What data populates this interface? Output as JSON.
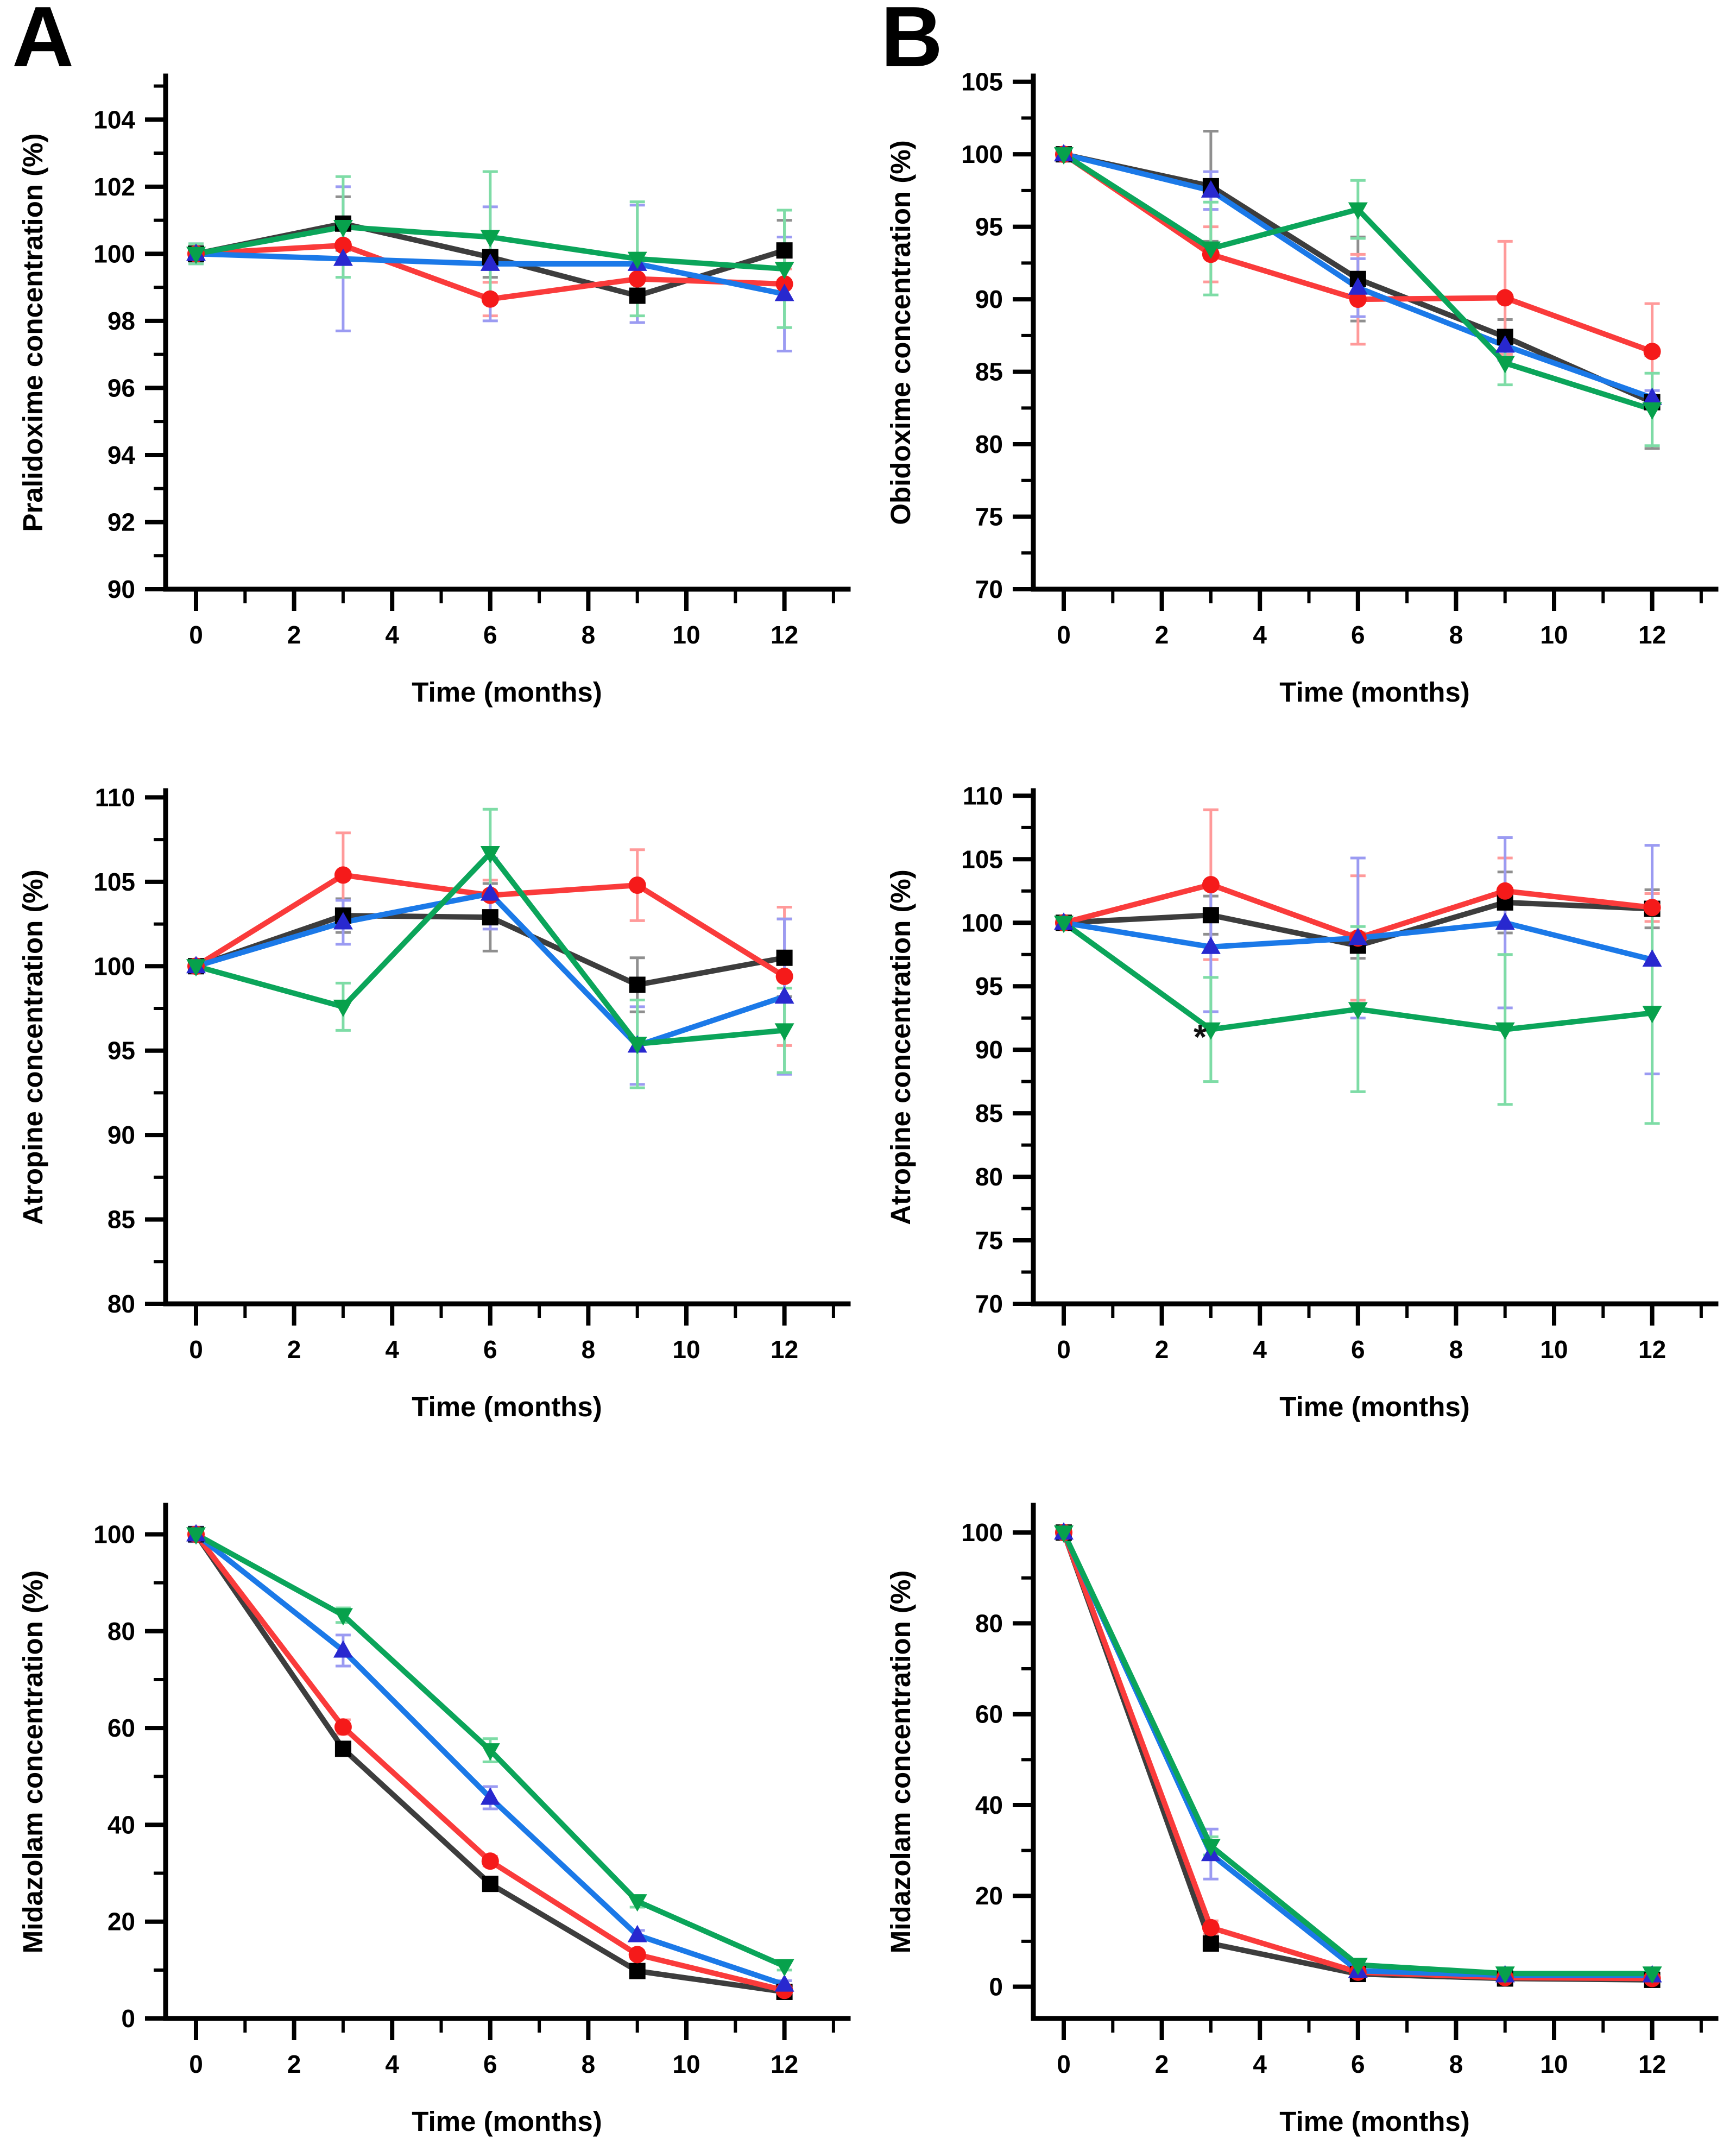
{
  "figure": {
    "panels": [
      {
        "label": "A"
      },
      {
        "label": "B"
      }
    ],
    "background_color": "#ffffff",
    "axis_color": "#000000"
  },
  "palette": {
    "black": {
      "line": "#3d3d3d",
      "marker": "#000000",
      "error": "#8f8f8f"
    },
    "red": {
      "line": "#fa3b3b",
      "marker": "#f51a1a",
      "error": "#ff9a9a"
    },
    "blue": {
      "line": "#1b79e8",
      "marker": "#2828cf",
      "error": "#9b9bf2"
    },
    "green": {
      "line": "#0ba55a",
      "marker": "#07a14c",
      "error": "#7edca6"
    }
  },
  "chart_data": [
    {
      "id": "pralidoxime-a",
      "panel": "A",
      "type": "line",
      "ylabel": "Pralidoxime concentration (%)",
      "xlabel": "Time (months)",
      "xlim": [
        -0.62,
        13.3
      ],
      "ylim": [
        90,
        105.3
      ],
      "xticks": [
        0,
        2,
        4,
        6,
        8,
        10,
        12
      ],
      "yticks": [
        90,
        92,
        94,
        96,
        98,
        100,
        102,
        104
      ],
      "x": [
        0,
        3,
        6,
        9,
        12
      ],
      "series": [
        {
          "name": "black-squares",
          "color_key": "black",
          "marker": "square",
          "values": [
            100.0,
            100.9,
            99.9,
            98.75,
            100.1
          ],
          "errors": [
            0.25,
            0.8,
            0.6,
            0.8,
            0.9
          ]
        },
        {
          "name": "red-circles",
          "color_key": "red",
          "marker": "circle",
          "values": [
            100.0,
            100.25,
            98.65,
            99.25,
            99.1
          ],
          "errors": [
            0.2,
            0.5,
            0.5,
            0.6,
            0.45
          ]
        },
        {
          "name": "blue-triangles-up",
          "color_key": "blue",
          "marker": "triangle-up",
          "values": [
            100.0,
            99.85,
            99.7,
            99.7,
            98.8
          ],
          "errors": [
            0.3,
            2.15,
            1.7,
            1.75,
            1.7
          ]
        },
        {
          "name": "green-triangles-down",
          "color_key": "green",
          "marker": "triangle-down",
          "values": [
            100.0,
            100.8,
            100.5,
            99.85,
            99.55
          ],
          "errors": [
            0.3,
            1.5,
            1.95,
            1.7,
            1.75
          ]
        }
      ],
      "annotations": []
    },
    {
      "id": "obidoxime-b",
      "panel": "B",
      "type": "line",
      "ylabel": "Obidoxime concentration (%)",
      "xlabel": "Time (months)",
      "xlim": [
        -0.62,
        13.3
      ],
      "ylim": [
        70,
        105.4
      ],
      "xticks": [
        0,
        2,
        4,
        6,
        8,
        10,
        12
      ],
      "yticks": [
        70,
        75,
        80,
        85,
        90,
        95,
        100,
        105
      ],
      "x": [
        0,
        3,
        6,
        9,
        12
      ],
      "series": [
        {
          "name": "black-squares",
          "color_key": "black",
          "marker": "square",
          "values": [
            100,
            97.8,
            91.4,
            87.4,
            82.9
          ],
          "errors": [
            0.3,
            3.8,
            2.9,
            1.2,
            3.2
          ]
        },
        {
          "name": "red-circles",
          "color_key": "red",
          "marker": "circle",
          "values": [
            100,
            93.1,
            90.0,
            90.1,
            86.4
          ],
          "errors": [
            0.3,
            1.9,
            3.1,
            3.9,
            3.3
          ]
        },
        {
          "name": "blue-triangles-up",
          "color_key": "blue",
          "marker": "triangle-up",
          "values": [
            100,
            97.5,
            90.8,
            86.8,
            83.2
          ],
          "errors": [
            0.3,
            1.3,
            2.0,
            1.0,
            0.5
          ]
        },
        {
          "name": "green-triangles-down",
          "color_key": "green",
          "marker": "triangle-down",
          "values": [
            100,
            93.5,
            96.2,
            85.6,
            82.4
          ],
          "errors": [
            0.3,
            3.2,
            2.0,
            1.5,
            2.5
          ]
        }
      ],
      "annotations": []
    },
    {
      "id": "atropine-a",
      "panel": "A",
      "type": "line",
      "ylabel": "Atropine concentration (%)",
      "xlabel": "Time (months)",
      "xlim": [
        -0.62,
        13.3
      ],
      "ylim": [
        80,
        110.4
      ],
      "xticks": [
        0,
        2,
        4,
        6,
        8,
        10,
        12
      ],
      "yticks": [
        80,
        85,
        90,
        95,
        100,
        105,
        110
      ],
      "x": [
        0,
        3,
        6,
        9,
        12
      ],
      "series": [
        {
          "name": "black-squares",
          "color_key": "black",
          "marker": "square",
          "values": [
            100,
            103.0,
            102.9,
            98.9,
            100.5
          ],
          "errors": [
            0.3,
            1.0,
            2.0,
            1.6,
            2.3
          ]
        },
        {
          "name": "red-circles",
          "color_key": "red",
          "marker": "circle",
          "values": [
            100,
            105.4,
            104.2,
            104.8,
            99.4
          ],
          "errors": [
            0.3,
            2.5,
            0.9,
            2.1,
            4.1
          ]
        },
        {
          "name": "blue-triangles-up",
          "color_key": "blue",
          "marker": "triangle-up",
          "values": [
            100,
            102.6,
            104.3,
            95.3,
            98.2
          ],
          "errors": [
            0.3,
            1.3,
            2.1,
            2.3,
            4.6
          ]
        },
        {
          "name": "green-triangles-down",
          "color_key": "green",
          "marker": "triangle-down",
          "values": [
            100,
            97.6,
            106.7,
            95.4,
            96.2
          ],
          "errors": [
            0.3,
            1.4,
            2.6,
            2.6,
            2.5
          ]
        }
      ],
      "annotations": []
    },
    {
      "id": "atropine-b",
      "panel": "B",
      "type": "line",
      "ylabel": "Atropine concentration (%)",
      "xlabel": "Time (months)",
      "xlim": [
        -0.62,
        13.3
      ],
      "ylim": [
        70,
        110.4
      ],
      "xticks": [
        0,
        2,
        4,
        6,
        8,
        10,
        12
      ],
      "yticks": [
        70,
        75,
        80,
        85,
        90,
        95,
        100,
        105,
        110
      ],
      "x": [
        0,
        3,
        6,
        9,
        12
      ],
      "series": [
        {
          "name": "black-squares",
          "color_key": "black",
          "marker": "square",
          "values": [
            100,
            100.6,
            98.2,
            101.6,
            101.1
          ],
          "errors": [
            0.3,
            1.5,
            1.0,
            2.4,
            1.5
          ]
        },
        {
          "name": "red-circles",
          "color_key": "red",
          "marker": "circle",
          "values": [
            100,
            103.0,
            98.8,
            102.5,
            101.2
          ],
          "errors": [
            0.3,
            5.9,
            4.9,
            2.6,
            1.1
          ]
        },
        {
          "name": "blue-triangles-up",
          "color_key": "blue",
          "marker": "triangle-up",
          "values": [
            100,
            98.1,
            98.8,
            100.0,
            97.1
          ],
          "errors": [
            0.3,
            5.1,
            6.3,
            6.7,
            9.0
          ]
        },
        {
          "name": "green-triangles-down",
          "color_key": "green",
          "marker": "triangle-down",
          "values": [
            100,
            91.6,
            93.2,
            91.6,
            92.9
          ],
          "errors": [
            0.3,
            4.1,
            6.5,
            5.9,
            8.7
          ]
        }
      ],
      "annotations": [
        {
          "x": 2.78,
          "y": 90.1,
          "text": "*"
        }
      ]
    },
    {
      "id": "midazolam-a",
      "panel": "A",
      "type": "line",
      "ylabel": "Midazolam concentration (%)",
      "xlabel": "Time (months)",
      "xlim": [
        -0.62,
        13.3
      ],
      "ylim": [
        0,
        106
      ],
      "xticks": [
        0,
        2,
        4,
        6,
        8,
        10,
        12
      ],
      "yticks": [
        0,
        20,
        40,
        60,
        80,
        100
      ],
      "x": [
        0,
        3,
        6,
        9,
        12
      ],
      "series": [
        {
          "name": "black-squares",
          "color_key": "black",
          "marker": "square",
          "values": [
            100,
            55.7,
            27.8,
            9.8,
            5.5
          ],
          "errors": [
            0.6,
            1.0,
            1.0,
            0.6,
            0.5
          ]
        },
        {
          "name": "red-circles",
          "color_key": "red",
          "marker": "circle",
          "values": [
            100,
            60.2,
            32.5,
            13.2,
            5.8
          ],
          "errors": [
            0.6,
            1.5,
            1.0,
            0.8,
            0.5
          ]
        },
        {
          "name": "blue-triangles-up",
          "color_key": "blue",
          "marker": "triangle-up",
          "values": [
            100,
            76.0,
            45.6,
            17.2,
            7.0
          ],
          "errors": [
            1.5,
            3.2,
            2.3,
            1.0,
            0.8
          ]
        },
        {
          "name": "green-triangles-down",
          "color_key": "green",
          "marker": "triangle-down",
          "values": [
            100,
            83.3,
            55.4,
            24.2,
            10.8
          ],
          "errors": [
            1.0,
            1.5,
            2.4,
            1.2,
            0.8
          ]
        }
      ],
      "annotations": []
    },
    {
      "id": "midazolam-b",
      "panel": "B",
      "type": "line",
      "ylabel": "Midazolam concentration (%)",
      "xlabel": "Time (months)",
      "xlim": [
        -0.62,
        13.3
      ],
      "ylim": [
        -7,
        106
      ],
      "xticks": [
        0,
        2,
        4,
        6,
        8,
        10,
        12
      ],
      "yticks": [
        0,
        20,
        40,
        60,
        80,
        100
      ],
      "x": [
        0,
        3,
        6,
        9,
        12
      ],
      "series": [
        {
          "name": "black-squares",
          "color_key": "black",
          "marker": "square",
          "values": [
            100,
            9.5,
            2.8,
            1.8,
            1.5
          ],
          "errors": [
            0.6,
            1.2,
            0.5,
            0.5,
            0.5
          ]
        },
        {
          "name": "red-circles",
          "color_key": "red",
          "marker": "circle",
          "values": [
            100,
            13.0,
            3.2,
            2.0,
            1.8
          ],
          "errors": [
            0.6,
            1.5,
            0.5,
            0.5,
            0.5
          ]
        },
        {
          "name": "blue-triangles-up",
          "color_key": "blue",
          "marker": "triangle-up",
          "values": [
            100,
            29.2,
            3.5,
            2.5,
            2.5
          ],
          "errors": [
            1.2,
            5.5,
            0.9,
            0.9,
            0.9
          ]
        },
        {
          "name": "green-triangles-down",
          "color_key": "green",
          "marker": "triangle-down",
          "values": [
            100,
            31.0,
            4.8,
            2.9,
            2.9
          ],
          "errors": [
            1.0,
            2.0,
            0.9,
            0.6,
            0.6
          ]
        }
      ],
      "annotations": []
    }
  ]
}
